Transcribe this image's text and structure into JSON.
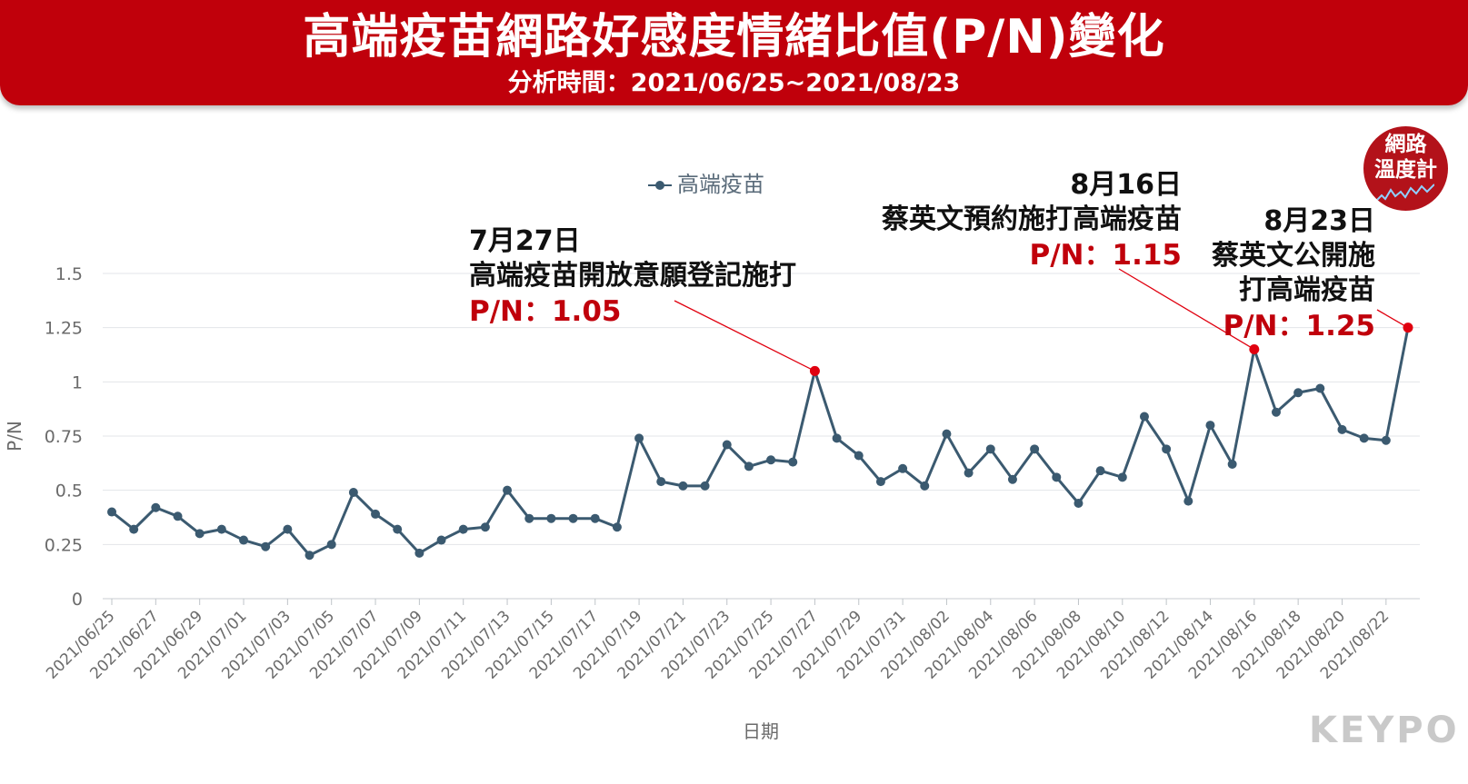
{
  "header": {
    "title": "高端疫苗網路好感度情緒比值(P/N)變化",
    "subtitle": "分析時間：2021/06/25~2021/08/23"
  },
  "badge": {
    "line1": "網路",
    "line2": "溫度計"
  },
  "logo": {
    "text": "KEYPO"
  },
  "annotations": [
    {
      "date": "7月27日",
      "event": "高端疫苗開放意願登記施打",
      "value": "P/N：1.05"
    },
    {
      "date": "8月16日",
      "event": "蔡英文預約施打高端疫苗",
      "value": "P/N：1.15"
    },
    {
      "date": "8月23日",
      "event_line1": "蔡英文公開施",
      "event_line2": "打高端疫苗",
      "value": "P/N：1.25"
    }
  ],
  "colors": {
    "line": "#3b5a70",
    "highlight": "#e0000f",
    "brand": "#c0000b"
  },
  "chart_data": {
    "type": "line",
    "xlabel": "日期",
    "ylabel": "P/N",
    "ylim": [
      0,
      1.5
    ],
    "yticks": [
      0,
      0.25,
      0.5,
      0.75,
      1,
      1.25,
      1.5
    ],
    "ytick_labels": [
      "0",
      "0.25",
      "0.5",
      "0.75",
      "1",
      "1.25",
      "1.5"
    ],
    "grid": true,
    "legend_position": "top-center",
    "x": [
      "2021/06/25",
      "2021/06/26",
      "2021/06/27",
      "2021/06/28",
      "2021/06/29",
      "2021/06/30",
      "2021/07/01",
      "2021/07/02",
      "2021/07/03",
      "2021/07/04",
      "2021/07/05",
      "2021/07/06",
      "2021/07/07",
      "2021/07/08",
      "2021/07/09",
      "2021/07/10",
      "2021/07/11",
      "2021/07/12",
      "2021/07/13",
      "2021/07/14",
      "2021/07/15",
      "2021/07/16",
      "2021/07/17",
      "2021/07/18",
      "2021/07/19",
      "2021/07/20",
      "2021/07/21",
      "2021/07/22",
      "2021/07/23",
      "2021/07/24",
      "2021/07/25",
      "2021/07/26",
      "2021/07/27",
      "2021/07/28",
      "2021/07/29",
      "2021/07/30",
      "2021/07/31",
      "2021/08/01",
      "2021/08/02",
      "2021/08/03",
      "2021/08/04",
      "2021/08/05",
      "2021/08/06",
      "2021/08/07",
      "2021/08/08",
      "2021/08/09",
      "2021/08/10",
      "2021/08/11",
      "2021/08/12",
      "2021/08/13",
      "2021/08/14",
      "2021/08/15",
      "2021/08/16",
      "2021/08/17",
      "2021/08/18",
      "2021/08/19",
      "2021/08/20",
      "2021/08/21",
      "2021/08/22",
      "2021/08/23"
    ],
    "xtick_labels": [
      "2021/06/25",
      "2021/06/27",
      "2021/06/29",
      "2021/07/01",
      "2021/07/03",
      "2021/07/05",
      "2021/07/07",
      "2021/07/09",
      "2021/07/11",
      "2021/07/13",
      "2021/07/15",
      "2021/07/17",
      "2021/07/19",
      "2021/07/21",
      "2021/07/23",
      "2021/07/25",
      "2021/07/27",
      "2021/07/29",
      "2021/07/31",
      "2021/08/02",
      "2021/08/04",
      "2021/08/06",
      "2021/08/08",
      "2021/08/10",
      "2021/08/12",
      "2021/08/14",
      "2021/08/16",
      "2021/08/18",
      "2021/08/20",
      "2021/08/22"
    ],
    "series": [
      {
        "name": "高端疫苗",
        "values": [
          0.4,
          0.32,
          0.42,
          0.38,
          0.3,
          0.32,
          0.27,
          0.24,
          0.32,
          0.2,
          0.25,
          0.49,
          0.39,
          0.32,
          0.21,
          0.27,
          0.32,
          0.33,
          0.5,
          0.37,
          0.37,
          0.37,
          0.37,
          0.33,
          0.74,
          0.54,
          0.52,
          0.52,
          0.71,
          0.61,
          0.64,
          0.63,
          1.05,
          0.74,
          0.66,
          0.54,
          0.6,
          0.52,
          0.76,
          0.58,
          0.69,
          0.55,
          0.69,
          0.56,
          0.44,
          0.59,
          0.56,
          0.84,
          0.69,
          0.45,
          0.8,
          0.62,
          1.15,
          0.86,
          0.95,
          0.97,
          0.78,
          0.74,
          0.73,
          1.25
        ]
      }
    ],
    "highlights": [
      "2021/07/27",
      "2021/08/16",
      "2021/08/23"
    ]
  }
}
